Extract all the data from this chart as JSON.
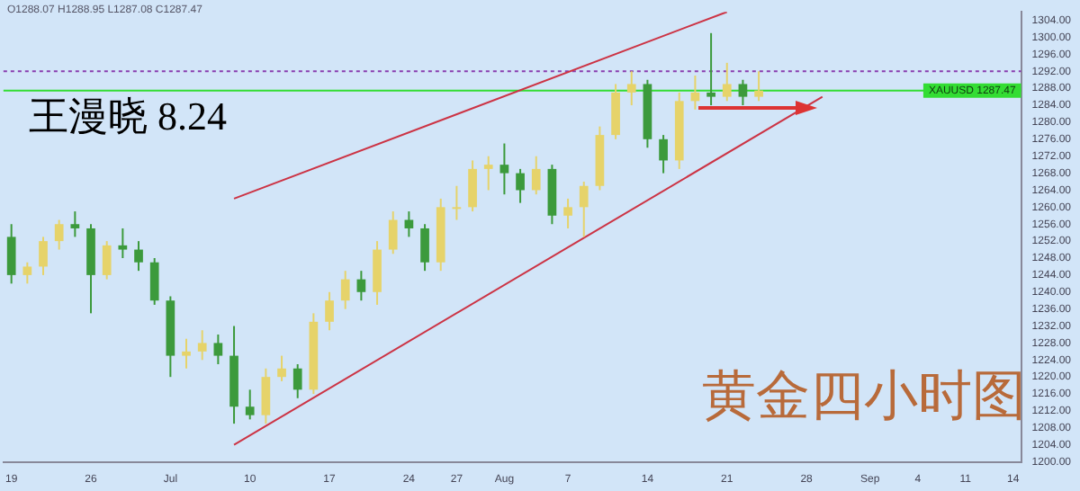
{
  "chart_data": {
    "type": "candlestick",
    "title": "黄金四小时图",
    "subtitle": "王漫晓 8.24",
    "annotations": [
      "O1288.07 H1288.95 L1287.08 C1287.47"
    ],
    "categories": [
      "19",
      null,
      null,
      null,
      null,
      "26",
      null,
      null,
      null,
      null,
      "Jul",
      null,
      null,
      null,
      null,
      "10",
      null,
      null,
      null,
      null,
      "17",
      null,
      null,
      null,
      null,
      "24",
      null,
      null,
      "27",
      null,
      null,
      "Aug",
      null,
      null,
      null,
      "7",
      null,
      null,
      null,
      null,
      "14",
      null,
      null,
      null,
      null,
      "21",
      null,
      null,
      null,
      null,
      "28",
      null,
      null,
      null,
      "Sep",
      null,
      null,
      "4",
      null,
      null,
      "11",
      null,
      null,
      "14"
    ],
    "ohlc": [
      [
        1253,
        1256,
        1242,
        1244
      ],
      [
        1244,
        1247,
        1242,
        1246
      ],
      [
        1246,
        1253,
        1244,
        1252
      ],
      [
        1252,
        1257,
        1250,
        1256
      ],
      [
        1256,
        1259,
        1253,
        1255
      ],
      [
        1255,
        1256,
        1235,
        1244
      ],
      [
        1244,
        1252,
        1243,
        1251
      ],
      [
        1251,
        1255,
        1248,
        1250
      ],
      [
        1250,
        1252,
        1245,
        1247
      ],
      [
        1247,
        1248,
        1237,
        1238
      ],
      [
        1238,
        1239,
        1220,
        1225
      ],
      [
        1225,
        1229,
        1222,
        1226
      ],
      [
        1226,
        1231,
        1224,
        1228
      ],
      [
        1228,
        1230,
        1223,
        1225
      ],
      [
        1225,
        1232,
        1209,
        1213
      ],
      [
        1213,
        1217,
        1210,
        1211
      ],
      [
        1211,
        1222,
        1209,
        1220
      ],
      [
        1220,
        1225,
        1219,
        1222
      ],
      [
        1222,
        1223,
        1215,
        1217
      ],
      [
        1217,
        1235,
        1216,
        1233
      ],
      [
        1233,
        1240,
        1231,
        1238
      ],
      [
        1238,
        1245,
        1236,
        1243
      ],
      [
        1243,
        1245,
        1238,
        1240
      ],
      [
        1240,
        1252,
        1237,
        1250
      ],
      [
        1250,
        1259,
        1249,
        1257
      ],
      [
        1257,
        1259,
        1253,
        1255
      ],
      [
        1255,
        1256,
        1245,
        1247
      ],
      [
        1247,
        1262,
        1245,
        1260
      ],
      [
        1260,
        1265,
        1257,
        1260
      ],
      [
        1260,
        1271,
        1259,
        1269
      ],
      [
        1269,
        1272,
        1264,
        1270
      ],
      [
        1270,
        1275,
        1263,
        1268
      ],
      [
        1268,
        1269,
        1261,
        1264
      ],
      [
        1264,
        1272,
        1263,
        1269
      ],
      [
        1269,
        1270,
        1256,
        1258
      ],
      [
        1258,
        1262,
        1255,
        1260
      ],
      [
        1260,
        1266,
        1253,
        1265
      ],
      [
        1265,
        1279,
        1264,
        1277
      ],
      [
        1277,
        1289,
        1276,
        1287
      ],
      [
        1287,
        1292,
        1284,
        1289
      ],
      [
        1289,
        1290,
        1274,
        1276
      ],
      [
        1276,
        1277,
        1268,
        1271
      ],
      [
        1271,
        1287,
        1269,
        1285
      ],
      [
        1285,
        1291,
        1283,
        1287
      ],
      [
        1287,
        1301,
        1284,
        1286
      ],
      [
        1286,
        1294,
        1285,
        1289
      ],
      [
        1289,
        1290,
        1284,
        1286
      ],
      [
        1286,
        1292,
        1285,
        1287.47
      ],
      null,
      null,
      null,
      null,
      null,
      null,
      null,
      null,
      null,
      null,
      null,
      null,
      null,
      null,
      null,
      null
    ],
    "colors": [
      "#3c9a3c",
      "#e6d36a",
      "#e6d36a",
      "#e6d36a",
      "#3c9a3c",
      "#3c9a3c",
      "#e6d36a",
      "#3c9a3c",
      "#3c9a3c",
      "#3c9a3c",
      "#3c9a3c",
      "#e6d36a",
      "#e6d36a",
      "#3c9a3c",
      "#3c9a3c",
      "#3c9a3c",
      "#e6d36a",
      "#e6d36a",
      "#3c9a3c",
      "#e6d36a",
      "#e6d36a",
      "#e6d36a",
      "#3c9a3c",
      "#e6d36a",
      "#e6d36a",
      "#3c9a3c",
      "#3c9a3c",
      "#e6d36a",
      "#e6d36a",
      "#e6d36a",
      "#e6d36a",
      "#3c9a3c",
      "#3c9a3c",
      "#e6d36a",
      "#3c9a3c",
      "#e6d36a",
      "#e6d36a",
      "#e6d36a",
      "#e6d36a",
      "#e6d36a",
      "#3c9a3c",
      "#3c9a3c",
      "#e6d36a",
      "#e6d36a",
      "#3c9a3c",
      "#e6d36a",
      "#3c9a3c",
      "#e6d36a",
      null,
      null,
      null,
      null,
      null,
      null,
      null,
      null,
      null,
      null,
      null,
      null,
      null,
      null,
      null,
      null
    ],
    "series": [
      {
        "type": "line",
        "color": "#cc3344",
        "values": [
          null,
          null,
          null,
          null,
          null,
          null,
          null,
          null,
          null,
          null,
          null,
          null,
          null,
          null,
          1262,
          null,
          null,
          null,
          null,
          null,
          null,
          null,
          null,
          null,
          null,
          null,
          null,
          null,
          null,
          null,
          null,
          null,
          null,
          null,
          null,
          null,
          null,
          null,
          null,
          null,
          null,
          null,
          null,
          null,
          null,
          1306,
          null,
          null,
          null,
          null,
          null,
          null,
          null,
          null,
          null,
          null,
          null,
          null,
          null,
          null,
          null,
          null,
          null,
          null
        ]
      },
      {
        "type": "line",
        "color": "#cc3344",
        "values": [
          null,
          null,
          null,
          null,
          null,
          null,
          null,
          null,
          null,
          null,
          null,
          null,
          null,
          null,
          1204,
          null,
          null,
          null,
          null,
          null,
          null,
          null,
          null,
          null,
          null,
          null,
          null,
          null,
          null,
          null,
          null,
          null,
          null,
          null,
          null,
          null,
          null,
          null,
          null,
          null,
          null,
          null,
          null,
          null,
          null,
          null,
          null,
          null,
          null,
          null,
          null,
          1286,
          null,
          null,
          null,
          null,
          null,
          null,
          null,
          null,
          null,
          null,
          null,
          null
        ]
      }
    ],
    "ref_lines": [
      {
        "axis": "y",
        "value": 1292,
        "color": "#8a3fb0",
        "line_style": "dotted"
      },
      {
        "axis": "y",
        "value": 1287.47,
        "label": "XAUUSD 1287.47",
        "color": "#33dd33",
        "line_style": "solid"
      }
    ],
    "ylim": [
      1200,
      1306
    ],
    "yticks": [
      {
        "value": 1200,
        "label": "1200.00"
      },
      {
        "value": 1204,
        "label": "1204.00"
      },
      {
        "value": 1208,
        "label": "1208.00"
      },
      {
        "value": 1212,
        "label": "1212.00"
      },
      {
        "value": 1216,
        "label": "1216.00"
      },
      {
        "value": 1220,
        "label": "1220.00"
      },
      {
        "value": 1224,
        "label": "1224.00"
      },
      {
        "value": 1228,
        "label": "1228.00"
      },
      {
        "value": 1232,
        "label": "1232.00"
      },
      {
        "value": 1236,
        "label": "1236.00"
      },
      {
        "value": 1240,
        "label": "1240.00"
      },
      {
        "value": 1244,
        "label": "1244.00"
      },
      {
        "value": 1248,
        "label": "1248.00"
      },
      {
        "value": 1252,
        "label": "1252.00"
      },
      {
        "value": 1256,
        "label": "1256.00"
      },
      {
        "value": 1260,
        "label": "1260.00"
      },
      {
        "value": 1264,
        "label": "1264.00"
      },
      {
        "value": 1268,
        "label": "1268.00"
      },
      {
        "value": 1272,
        "label": "1272.00"
      },
      {
        "value": 1276,
        "label": "1276.00"
      },
      {
        "value": 1280,
        "label": "1280.00"
      },
      {
        "value": 1284,
        "label": "1284.00"
      },
      {
        "value": 1288,
        "label": "1288.00"
      },
      {
        "value": 1292,
        "label": "1292.00"
      },
      {
        "value": 1296,
        "label": "1296.00"
      },
      {
        "value": 1300,
        "label": "1300.00"
      },
      {
        "value": 1304,
        "label": "1304.00"
      }
    ],
    "grid": false,
    "legend": false
  }
}
